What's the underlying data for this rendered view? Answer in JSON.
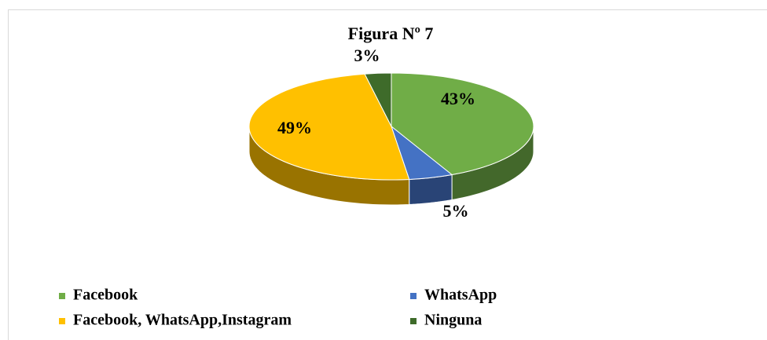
{
  "chart_data": {
    "type": "pie",
    "title": "Figura Nº 7",
    "categories": [
      "Facebook",
      "WhatsApp",
      "Facebook, WhatsApp,Instagram",
      "Ninguna"
    ],
    "values": [
      43,
      5,
      49,
      3
    ],
    "value_labels": [
      "43%",
      "5%",
      "49%",
      "3%"
    ],
    "colors": [
      "#70ad47",
      "#4472c4",
      "#ffc000",
      "#3e6b2a"
    ],
    "legend": "bottom"
  }
}
